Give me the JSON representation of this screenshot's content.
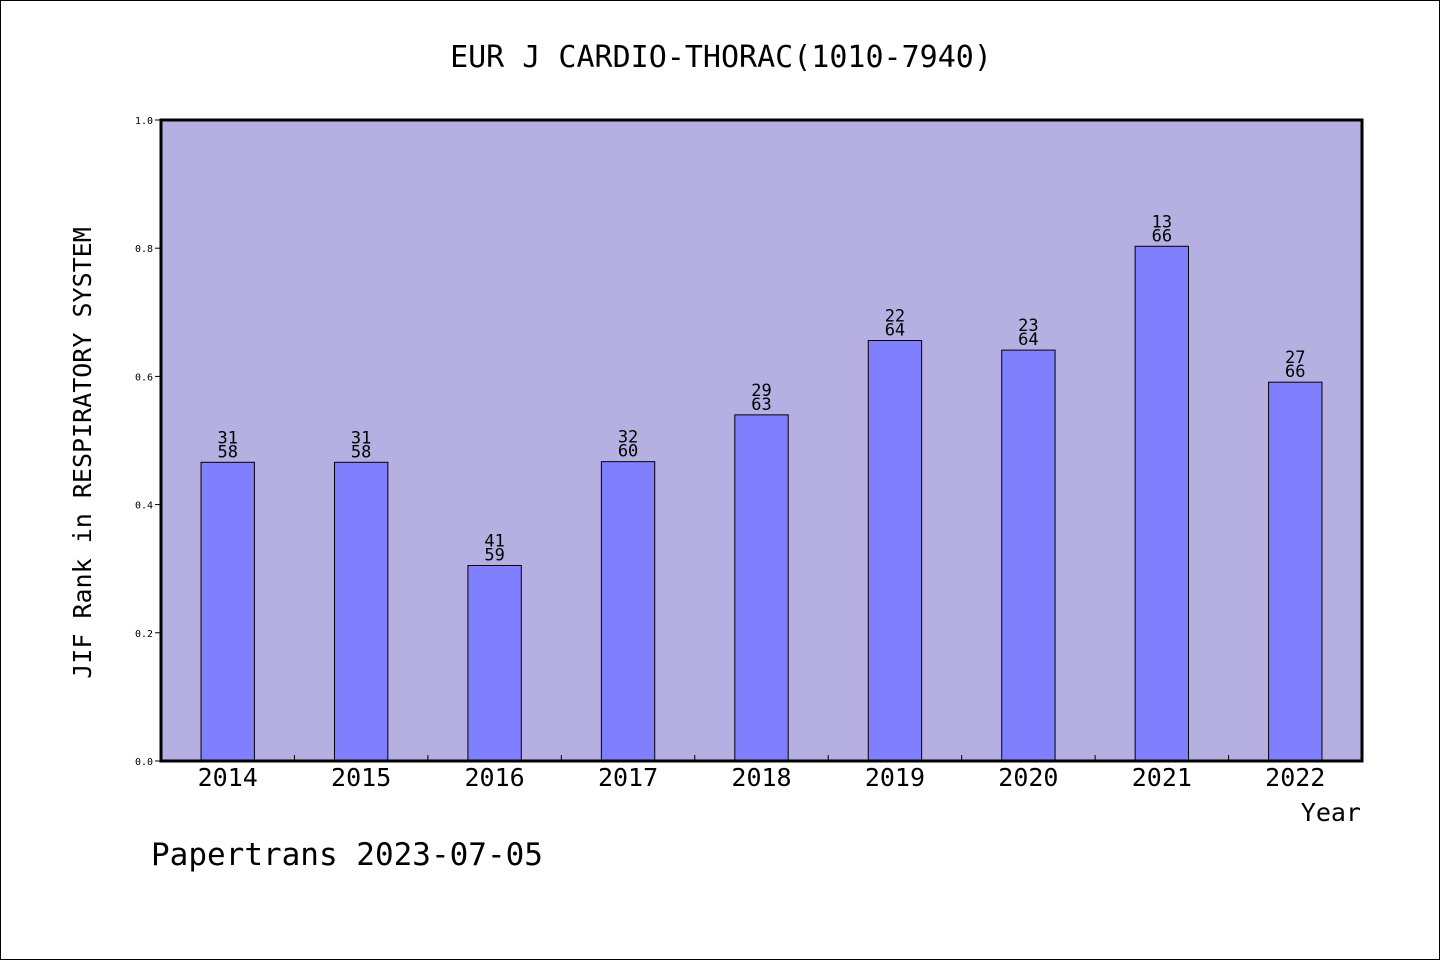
{
  "chart_data": {
    "type": "bar",
    "title": "EUR J CARDIO-THORAC(1010-7940)",
    "xlabel": "Year",
    "ylabel": "JIF Rank in RESPIRATORY SYSTEM",
    "ylim": [
      0.0,
      1.0
    ],
    "yticks": [
      "0.0",
      "0.2",
      "0.4",
      "0.6",
      "0.8",
      "1.0"
    ],
    "categories": [
      "2014",
      "2015",
      "2016",
      "2017",
      "2018",
      "2019",
      "2020",
      "2021",
      "2022"
    ],
    "values": [
      0.466,
      0.466,
      0.305,
      0.467,
      0.54,
      0.656,
      0.641,
      0.803,
      0.591
    ],
    "rank": [
      "31",
      "31",
      "41",
      "32",
      "29",
      "22",
      "23",
      "13",
      "27"
    ],
    "total": [
      "58",
      "58",
      "59",
      "60",
      "63",
      "64",
      "64",
      "66",
      "66"
    ],
    "grid": false,
    "legend": "none",
    "colors": {
      "plot_background": "#b6b0e2",
      "bar_fill": "#8080ff",
      "bar_stroke": "#000000"
    }
  },
  "footer": {
    "source": "Papertrans 2023-07-05"
  }
}
